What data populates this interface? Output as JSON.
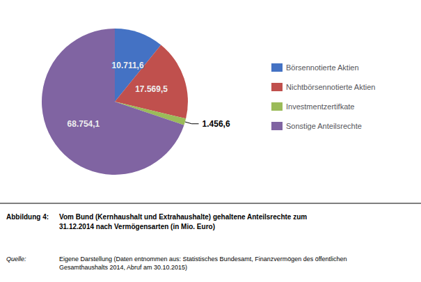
{
  "chart_data": {
    "type": "pie",
    "categories": [
      "Börsennotierte Aktien",
      "Nichtbörsennotierte Aktien",
      "Investmentzertifkate",
      "Sonstige Anteilsrechte"
    ],
    "values": [
      10711.6,
      17569.5,
      1456.6,
      68754.1
    ],
    "value_labels": [
      "10.711,6",
      "17.569,5",
      "1.456,6",
      "68.754,1"
    ],
    "colors": [
      "#4472C4",
      "#C0504D",
      "#9BBB59",
      "#8064A2"
    ],
    "data_labels": true,
    "legend": "right",
    "annotations": [
      "Abbildung 4:",
      "Vom Bund (Kernhaushalt und Extrahaushalte) gehaltene Anteilsrechte zum\n31.12.2014 nach Vermögensarten (in Mio. Euro)",
      "Quelle:",
      "Eigene Darstellung (Daten entnommen aus: Statistisches Bundesamt, Finanzvermögen des öffentlichen\nGesamthaushalts 2014, Abruf am 30.10.2015)"
    ]
  }
}
